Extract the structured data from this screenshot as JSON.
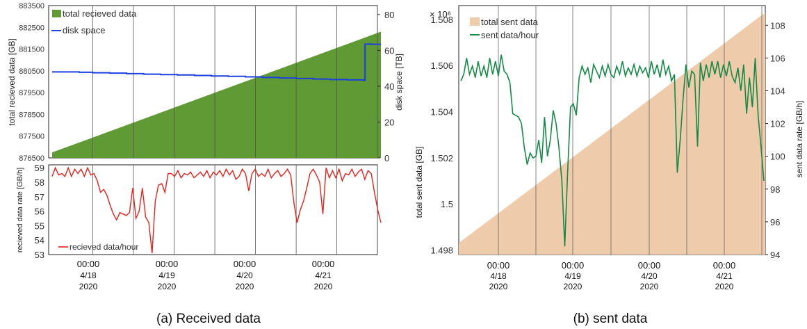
{
  "panel_a": {
    "caption": "(a) Received data",
    "top": {
      "y_left_label": "total recieved data [GB]",
      "y_right_label": "disk space [TB]",
      "y_left_ticks": [
        "883500",
        "882500",
        "881500",
        "880500",
        "879500",
        "878500",
        "877500",
        "876500"
      ],
      "y_right_ticks": [
        "80",
        "60",
        "40",
        "20",
        "0"
      ],
      "legend": [
        "total recieved data",
        "disk space"
      ]
    },
    "bottom": {
      "y_label": "recieved data rate [GB/h]",
      "y_ticks": [
        "59",
        "58",
        "57",
        "56",
        "55",
        "54",
        "53"
      ],
      "legend": [
        "recieved data/hour"
      ]
    },
    "dates": [
      {
        "time": "00:00",
        "md": "4/18",
        "yr": "2020"
      },
      {
        "time": "00:00",
        "md": "4/19",
        "yr": "2020"
      },
      {
        "time": "00:00",
        "md": "4/20",
        "yr": "2020"
      },
      {
        "time": "00:00",
        "md": "4/21",
        "yr": "2020"
      }
    ]
  },
  "panel_b": {
    "caption": "(b) sent data",
    "sci_label": "× 10⁶",
    "y_left_label": "total sent data [GB]",
    "y_right_label": "sent data rate [GB/h]",
    "y_left_ticks": [
      "1.508",
      "1.506",
      "1.504",
      "1.502",
      "1.5",
      "1.498"
    ],
    "y_right_ticks": [
      "108",
      "106",
      "104",
      "102",
      "100",
      "98",
      "96",
      "94"
    ],
    "legend": [
      "total sent data",
      "sent data/hour"
    ],
    "dates": [
      {
        "time": "00:00",
        "md": "4/18",
        "yr": "2020"
      },
      {
        "time": "00:00",
        "md": "4/19",
        "yr": "2020"
      },
      {
        "time": "00:00",
        "md": "4/20",
        "yr": "2020"
      },
      {
        "time": "00:00",
        "md": "4/21",
        "yr": "2020"
      }
    ]
  },
  "colors": {
    "total_received": "#5f9a35",
    "disk_space": "#1c3fe0",
    "received_rate": "#e8201c",
    "total_sent": "#eecbaa",
    "sent_rate": "#138a45"
  },
  "chart_data": [
    {
      "type": "area",
      "ylabel": "total recieved data [GB]",
      "ylim": [
        876500,
        883500
      ],
      "x_hours": [
        -12,
        85
      ],
      "series": [
        {
          "name": "total recieved data",
          "x": [
            -12,
            85
          ],
          "values": [
            876750,
            882300
          ]
        }
      ]
    },
    {
      "type": "line",
      "ylabel": "disk space [TB]",
      "ylim": [
        0,
        85
      ],
      "series": [
        {
          "name": "disk space",
          "x": [
            -12,
            -4,
            0,
            5,
            10,
            15,
            20,
            25,
            30,
            35,
            40,
            45,
            50,
            55,
            60,
            65,
            70,
            75,
            80,
            80.3,
            82,
            85
          ],
          "values": [
            48,
            47.8,
            47.5,
            47.3,
            47,
            46.7,
            46.5,
            46.3,
            46,
            45.7,
            45.5,
            45.2,
            44.9,
            44.6,
            44.3,
            44.0,
            43.7,
            43.5,
            43.3,
            63.5,
            63.4,
            63.4
          ]
        }
      ]
    },
    {
      "type": "line",
      "ylabel": "recieved data rate [GB/h]",
      "ylim": [
        53,
        59.2
      ],
      "series": [
        {
          "name": "recieved data/hour",
          "values": [
            58.4,
            59.0,
            58.5,
            58.6,
            58.4,
            59.0,
            58.4,
            58.9,
            58.6,
            58.9,
            58.4,
            59.0,
            58.5,
            58.6,
            58.1,
            57.3,
            57.5,
            57.1,
            56.4,
            55.8,
            55.4,
            55.9,
            55.8,
            55.7,
            55.9,
            57.6,
            55.5,
            56.0,
            57.6,
            55.6,
            55.2,
            53.1,
            56.7,
            57.8,
            57.9,
            57.3,
            58.6,
            58.6,
            58.4,
            58.8,
            58.3,
            58.6,
            58.5,
            58.7,
            58.3,
            58.5,
            58.7,
            58.4,
            58.8,
            58.3,
            58.7,
            58.5,
            58.8,
            58.4,
            58.9,
            58.5,
            58.8,
            58.2,
            58.4,
            58.9,
            58.6,
            57.4,
            58.6,
            58.9,
            58.4,
            58.6,
            58.4,
            58.9,
            58.3,
            58.6,
            58.8,
            58.4,
            58.6,
            58.9,
            58.5,
            56.6,
            55.2,
            56.1,
            56.7,
            57.6,
            58.6,
            58.9,
            58.5,
            58.0,
            55.8,
            59.0,
            58.3,
            58.8,
            58.3,
            58.9,
            58.1,
            58.6,
            58.5,
            58.9,
            58.4,
            58.7,
            58.9,
            58.2,
            58.8,
            58.6,
            57.3,
            56.1,
            55.2
          ]
        }
      ]
    },
    {
      "type": "area",
      "ylabel": "total sent data [GB]",
      "ylim": [
        1497800,
        1508600
      ],
      "series": [
        {
          "name": "total sent data",
          "x": [
            -12,
            85
          ],
          "values": [
            1498300,
            1508300
          ]
        }
      ]
    },
    {
      "type": "line",
      "ylabel": "sent data rate [GB/h]",
      "ylim": [
        94,
        109.2
      ],
      "series": [
        {
          "name": "sent data/hour",
          "values": [
            104.6,
            105.0,
            106.0,
            105.0,
            105.5,
            104.8,
            105.8,
            104.9,
            105.5,
            104.8,
            106.0,
            105.0,
            105.8,
            104.9,
            106.2,
            105.2,
            105.0,
            104.5,
            102.6,
            102.5,
            102.4,
            102.0,
            100.5,
            99.5,
            100.2,
            99.9,
            100.0,
            101.0,
            99.6,
            102.4,
            100.0,
            101.0,
            102.8,
            102.0,
            100.5,
            98.5,
            94.5,
            99.0,
            103.0,
            103.2,
            102.5,
            104.8,
            105.5,
            105.0,
            105.4,
            104.5,
            105.6,
            105.2,
            104.8,
            105.5,
            104.9,
            105.6,
            105.0,
            104.8,
            105.5,
            105.0,
            105.8,
            104.9,
            105.4,
            105.0,
            105.6,
            104.9,
            105.5,
            105.1,
            105.4,
            104.8,
            105.8,
            105.0,
            105.6,
            104.8,
            105.9,
            105.0,
            105.5,
            104.6,
            105.0,
            99.0,
            101.0,
            103.5,
            105.6,
            104.2,
            105.2,
            105.0,
            100.6,
            105.7,
            104.6,
            105.6,
            104.8,
            105.8,
            105.0,
            105.8,
            104.8,
            105.6,
            104.9,
            105.8,
            104.9,
            104.5,
            105.4,
            104.0,
            105.6,
            102.6,
            104.8,
            103.0,
            106.0,
            102.5,
            100.6,
            98.5
          ]
        }
      ]
    }
  ]
}
